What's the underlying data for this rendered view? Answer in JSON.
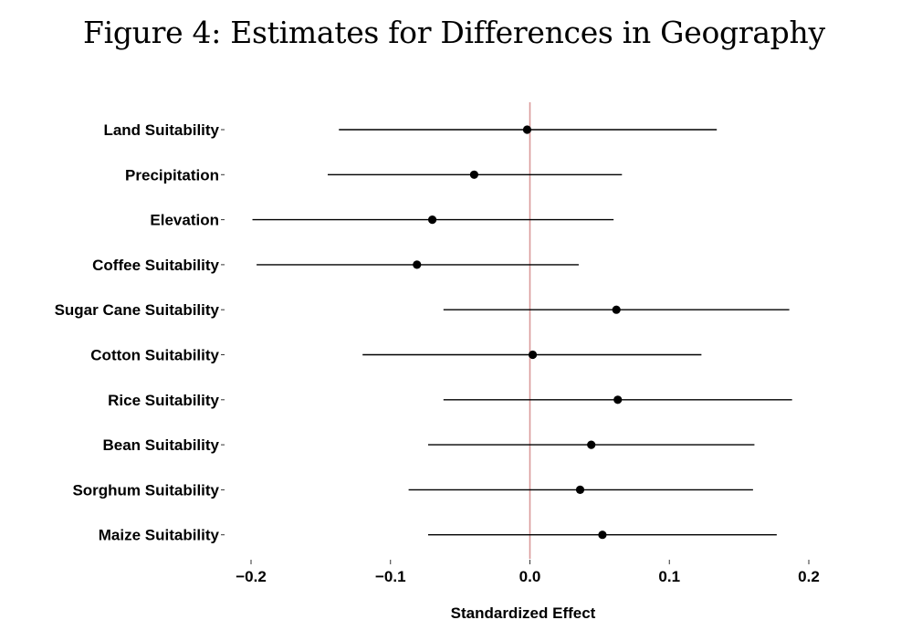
{
  "figure": {
    "title": "Figure 4: Estimates for Differences in Geography"
  },
  "chart_data": {
    "type": "scatter",
    "subtype": "coefficient-plot",
    "title": "Figure 4: Estimates for Differences in Geography",
    "xlabel": "Standardized Effect",
    "ylabel": "",
    "xlim": [
      -0.2,
      0.2
    ],
    "x_ticks": [
      -0.2,
      -0.1,
      0.0,
      0.1,
      0.2
    ],
    "x_tick_labels": [
      "−0.2",
      "−0.1",
      "0.0",
      "0.1",
      "0.2"
    ],
    "reference_line": {
      "x": 0,
      "color": "#d99a9a"
    },
    "grid": false,
    "legend": "none",
    "point_color": "#000000",
    "series": [
      {
        "categories": [
          "Land Suitability",
          "Precipitation",
          "Elevation",
          "Coffee Suitability",
          "Sugar Cane Suitability",
          "Cotton Suitability",
          "Rice Suitability",
          "Bean Suitability",
          "Sorghum Suitability",
          "Maize Suitability"
        ],
        "estimates": [
          -0.002,
          -0.04,
          -0.07,
          -0.081,
          0.062,
          0.002,
          0.063,
          0.044,
          0.036,
          0.052
        ],
        "ci_low": [
          -0.137,
          -0.145,
          -0.199,
          -0.196,
          -0.062,
          -0.12,
          -0.062,
          -0.073,
          -0.087,
          -0.073
        ],
        "ci_high": [
          0.134,
          0.066,
          0.06,
          0.035,
          0.186,
          0.123,
          0.188,
          0.161,
          0.16,
          0.177
        ]
      }
    ]
  }
}
